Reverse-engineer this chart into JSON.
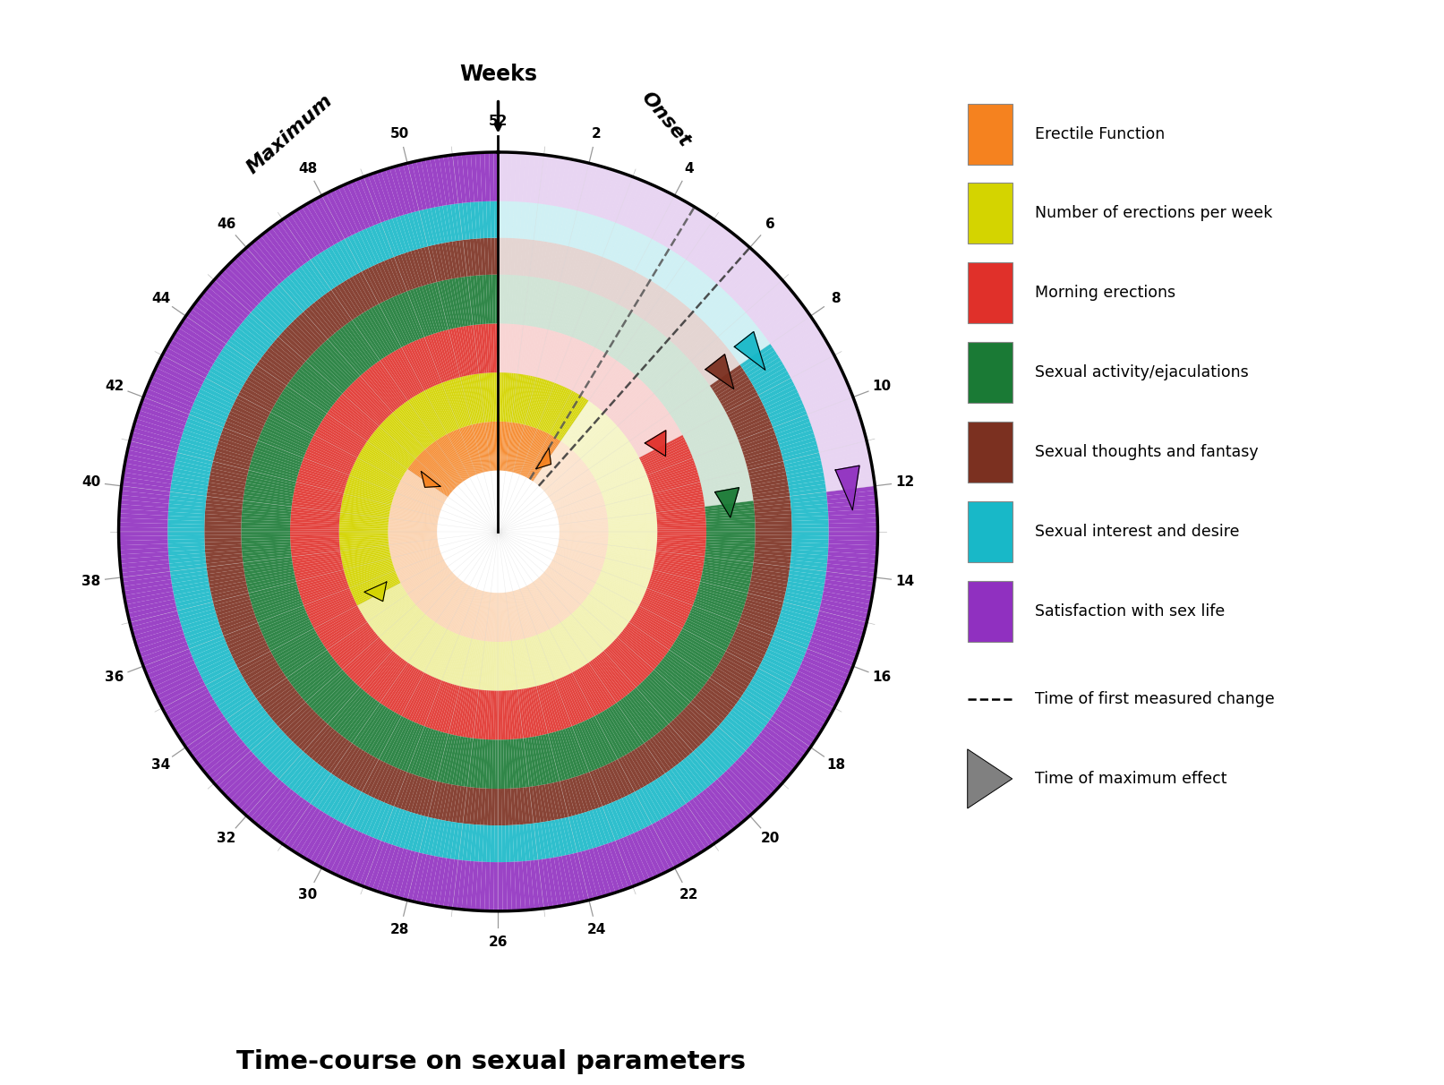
{
  "title": "Time-course on sexual parameters",
  "weeks_total": 52,
  "rings": [
    {
      "name": "Erectile Function",
      "color": "#F5821F",
      "alpha_full": 0.9,
      "alpha_fade": 0.2,
      "onset_week": 5,
      "max_week": 44,
      "r_inner": 0.15,
      "r_outer": 0.27
    },
    {
      "name": "Number of erections per week",
      "color": "#D4D400",
      "alpha_full": 0.95,
      "alpha_fade": 0.2,
      "onset_week": 5,
      "max_week": 35,
      "r_inner": 0.27,
      "r_outer": 0.39
    },
    {
      "name": "Morning erections",
      "color": "#E0302A",
      "alpha_full": 0.9,
      "alpha_fade": 0.2,
      "onset_week": 9,
      "max_week": null,
      "r_inner": 0.39,
      "r_outer": 0.51
    },
    {
      "name": "Sexual activity/ejaculations",
      "color": "#1A7A35",
      "alpha_full": 0.9,
      "alpha_fade": 0.2,
      "onset_week": 12,
      "max_week": null,
      "r_inner": 0.51,
      "r_outer": 0.63
    },
    {
      "name": "Sexual thoughts and fantasy",
      "color": "#7B3020",
      "alpha_full": 0.9,
      "alpha_fade": 0.2,
      "onset_week": 8,
      "max_week": null,
      "r_inner": 0.63,
      "r_outer": 0.72
    },
    {
      "name": "Sexual interest and desire",
      "color": "#18B8C8",
      "alpha_full": 0.9,
      "alpha_fade": 0.2,
      "onset_week": 8,
      "max_week": null,
      "r_inner": 0.72,
      "r_outer": 0.81
    },
    {
      "name": "Satisfaction with sex life",
      "color": "#9030C0",
      "alpha_full": 0.9,
      "alpha_fade": 0.2,
      "onset_week": 12,
      "max_week": null,
      "r_inner": 0.81,
      "r_outer": 0.93
    }
  ],
  "legend_items": [
    {
      "label": "Erectile Function",
      "color": "#F5821F"
    },
    {
      "label": "Number of erections per week",
      "color": "#D4D400"
    },
    {
      "label": "Morning erections",
      "color": "#E0302A"
    },
    {
      "label": "Sexual activity/ejaculations",
      "color": "#1A7A35"
    },
    {
      "label": "Sexual thoughts and fantasy",
      "color": "#7B3020"
    },
    {
      "label": "Sexual interest and desire",
      "color": "#18B8C8"
    },
    {
      "label": "Satisfaction with sex life",
      "color": "#9030C0"
    }
  ],
  "tick_weeks": [
    2,
    4,
    6,
    8,
    10,
    12,
    14,
    16,
    18,
    20,
    22,
    24,
    26,
    28,
    30,
    32,
    34,
    36,
    38,
    40,
    42,
    44,
    46,
    48,
    50,
    52
  ],
  "onset_markers": [
    {
      "week": 5,
      "r_mid": 0.21,
      "color": "#F5821F"
    },
    {
      "week": 9,
      "r_mid": 0.45,
      "color": "#E0302A"
    },
    {
      "week": 8,
      "r_mid": 0.675,
      "color": "#7B3020"
    },
    {
      "week": 8,
      "r_mid": 0.765,
      "color": "#18B8C8"
    },
    {
      "week": 12,
      "r_mid": 0.57,
      "color": "#1A7A35"
    },
    {
      "week": 12,
      "r_mid": 0.87,
      "color": "#9030C0"
    }
  ],
  "max_markers": [
    {
      "week": 44,
      "r_mid": 0.21,
      "color": "#F5821F"
    },
    {
      "week": 35,
      "r_mid": 0.33,
      "color": "#D4D400"
    }
  ],
  "dashed_lines": [
    {
      "week": 4.5,
      "color": "#555555"
    },
    {
      "week": 6.0,
      "color": "#333333"
    }
  ]
}
